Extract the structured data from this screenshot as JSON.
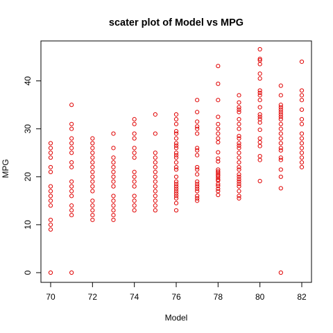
{
  "chart_data": {
    "type": "scatter",
    "title": "scater plot of Model vs MPG",
    "xlabel": "Model",
    "ylabel": "MPG",
    "xlim": [
      70,
      82
    ],
    "ylim": [
      0,
      46.6
    ],
    "x_ticks": [
      70,
      72,
      74,
      76,
      78,
      80,
      82
    ],
    "y_ticks": [
      0,
      10,
      20,
      30,
      40
    ],
    "x_tick_labels": [
      "70",
      "72",
      "74",
      "76",
      "78",
      "80",
      "82"
    ],
    "y_tick_labels": [
      "0",
      "10",
      "20",
      "30",
      "40"
    ],
    "grid": false,
    "legend": "none",
    "point_style": "open-circle",
    "point_color": "#e00000",
    "points": {
      "70": [
        0,
        9,
        10,
        11,
        14,
        15,
        16,
        17,
        18,
        21,
        22,
        24,
        25,
        26,
        27
      ],
      "71": [
        0,
        12,
        13,
        14,
        16,
        17,
        18,
        19,
        22,
        23,
        25,
        26,
        27,
        28,
        30,
        31,
        35
      ],
      "72": [
        11,
        12,
        13,
        14,
        15,
        17,
        18,
        19,
        20,
        21,
        22,
        23,
        24,
        25,
        26,
        27,
        28
      ],
      "73": [
        11,
        12,
        13,
        14,
        15,
        16,
        18,
        19,
        20,
        21,
        22,
        23,
        24,
        26,
        29
      ],
      "74": [
        13,
        14,
        15,
        16,
        18,
        19,
        20,
        21,
        24,
        25,
        26,
        28,
        29,
        31,
        32
      ],
      "75": [
        13,
        14,
        15,
        16,
        17,
        18,
        19,
        20,
        21,
        22,
        23,
        24,
        25,
        29,
        33
      ],
      "76": [
        13,
        14.5,
        15.5,
        16,
        16.5,
        17,
        17.5,
        18,
        18.5,
        19,
        20,
        21.5,
        22,
        23,
        24,
        24.5,
        25,
        26,
        26.5,
        27,
        28,
        29,
        29.5,
        31,
        32,
        33
      ],
      "77": [
        15,
        15.5,
        16,
        17,
        17.5,
        18,
        18.5,
        19,
        20.5,
        21.5,
        22,
        24.5,
        25.5,
        26,
        29,
        30,
        30.5,
        31.5,
        33.5,
        36
      ],
      "78": [
        16.2,
        17,
        17.5,
        18.1,
        18.5,
        19.2,
        19.4,
        19.8,
        20.2,
        20.5,
        20.8,
        21.1,
        21.5,
        23.2,
        23.8,
        25.1,
        27.2,
        28,
        29,
        30,
        31,
        32.5,
        36,
        39.4,
        43.1
      ],
      "79": [
        15.5,
        16,
        17,
        18,
        18.5,
        19,
        19.5,
        20,
        20.5,
        21.5,
        22,
        23,
        24,
        25,
        26,
        26.5,
        27,
        28,
        28.5,
        30,
        31,
        32,
        33.5,
        34,
        34.5,
        35.5,
        37
      ],
      "80": [
        19.1,
        23.5,
        24.3,
        26.4,
        27.2,
        28,
        29.8,
        31.3,
        32,
        32.5,
        33,
        34.5,
        36,
        37,
        37.5,
        38,
        40.5,
        41.5,
        43.5,
        44.3,
        44.6,
        46.6
      ],
      "81": [
        0,
        17.6,
        20,
        21.5,
        23.5,
        24,
        25.5,
        26,
        27,
        28,
        29,
        30,
        31,
        32,
        32.5,
        33,
        33.5,
        34,
        34.5,
        35,
        37,
        39
      ],
      "82": [
        22,
        23,
        24,
        25,
        26,
        27,
        28,
        29,
        31,
        32,
        34,
        36,
        37,
        38,
        44
      ]
    }
  }
}
